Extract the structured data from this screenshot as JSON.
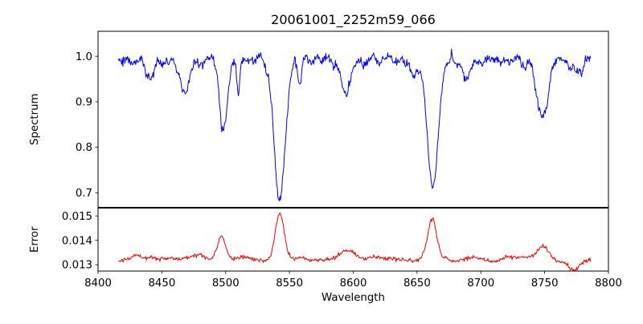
{
  "figure": {
    "title": "20061001_2252m59_066",
    "background_color": "#ffffff",
    "axis_color": "#000000"
  },
  "chart_data": [
    {
      "type": "line",
      "name": "spectrum",
      "title": "20061001_2252m59_066",
      "ylabel": "Spectrum",
      "xlabel": "",
      "line_color": "#0000ff",
      "xlim": [
        8400,
        8800
      ],
      "ylim": [
        0.668,
        1.055
      ],
      "yticks": [
        "0.7",
        "0.8",
        "0.9",
        "1.0"
      ],
      "xticks": [
        "8400",
        "8450",
        "8500",
        "8550",
        "8600",
        "8650",
        "8700",
        "8750",
        "8800"
      ],
      "x_tick_labels_visible": false,
      "grid": false,
      "legend": null,
      "x_start": 8416,
      "x_end": 8786,
      "x_step": 0.5,
      "continuum": 0.992,
      "noise": {
        "point_sigma": 0.005,
        "knot_sigma": 0.0065,
        "knot_step": 3,
        "seed": 11
      },
      "features": [
        {
          "center": 8441.0,
          "amplitude": -0.045,
          "sigma": 3.0
        },
        {
          "center": 8468.0,
          "amplitude": -0.07,
          "sigma": 4.0
        },
        {
          "center": 8498.3,
          "amplitude": -0.16,
          "sigma": 3.0
        },
        {
          "center": 8510.0,
          "amplitude": -0.07,
          "sigma": 1.2
        },
        {
          "center": 8542.3,
          "amplitude": -0.31,
          "sigma": 4.2
        },
        {
          "center": 8558.0,
          "amplitude": -0.045,
          "sigma": 1.5
        },
        {
          "center": 8594.0,
          "amplitude": -0.065,
          "sigma": 4.0
        },
        {
          "center": 8648.0,
          "amplitude": -0.045,
          "sigma": 2.5
        },
        {
          "center": 8662.3,
          "amplitude": -0.275,
          "sigma": 4.2
        },
        {
          "center": 8688.0,
          "amplitude": -0.04,
          "sigma": 2.0
        },
        {
          "center": 8748.0,
          "amplitude": -0.115,
          "sigma": 4.5
        },
        {
          "center": 8776.0,
          "amplitude": -0.035,
          "sigma": 3.0
        }
      ]
    },
    {
      "type": "line",
      "name": "error",
      "title": "",
      "ylabel": "Error",
      "xlabel": "Wavelength",
      "line_color": "#ff0000",
      "xlim": [
        8400,
        8800
      ],
      "ylim": [
        0.01274,
        0.01532
      ],
      "yticks": [
        "0.013",
        "0.014",
        "0.015"
      ],
      "xticks": [
        "8400",
        "8450",
        "8500",
        "8550",
        "8600",
        "8650",
        "8700",
        "8750",
        "8800"
      ],
      "x_tick_labels_visible": true,
      "grid": false,
      "legend": null,
      "x_start": 8416,
      "x_end": 8786,
      "x_step": 0.5,
      "continuum": 0.01325,
      "noise": {
        "point_sigma": 4e-05,
        "knot_sigma": 7e-05,
        "knot_step": 8,
        "seed": 23
      },
      "features": [
        {
          "center": 8430.0,
          "amplitude": 0.0002,
          "sigma": 2.5
        },
        {
          "center": 8497.0,
          "amplitude": 0.00078,
          "sigma": 3.0
        },
        {
          "center": 8542.3,
          "amplitude": 0.00185,
          "sigma": 3.5
        },
        {
          "center": 8594.0,
          "amplitude": 0.0003,
          "sigma": 5.0
        },
        {
          "center": 8662.0,
          "amplitude": 0.0017,
          "sigma": 3.5
        },
        {
          "center": 8748.0,
          "amplitude": 0.00048,
          "sigma": 4.0
        },
        {
          "center": 8772.0,
          "amplitude": -0.0004,
          "sigma": 5.0
        }
      ]
    }
  ]
}
